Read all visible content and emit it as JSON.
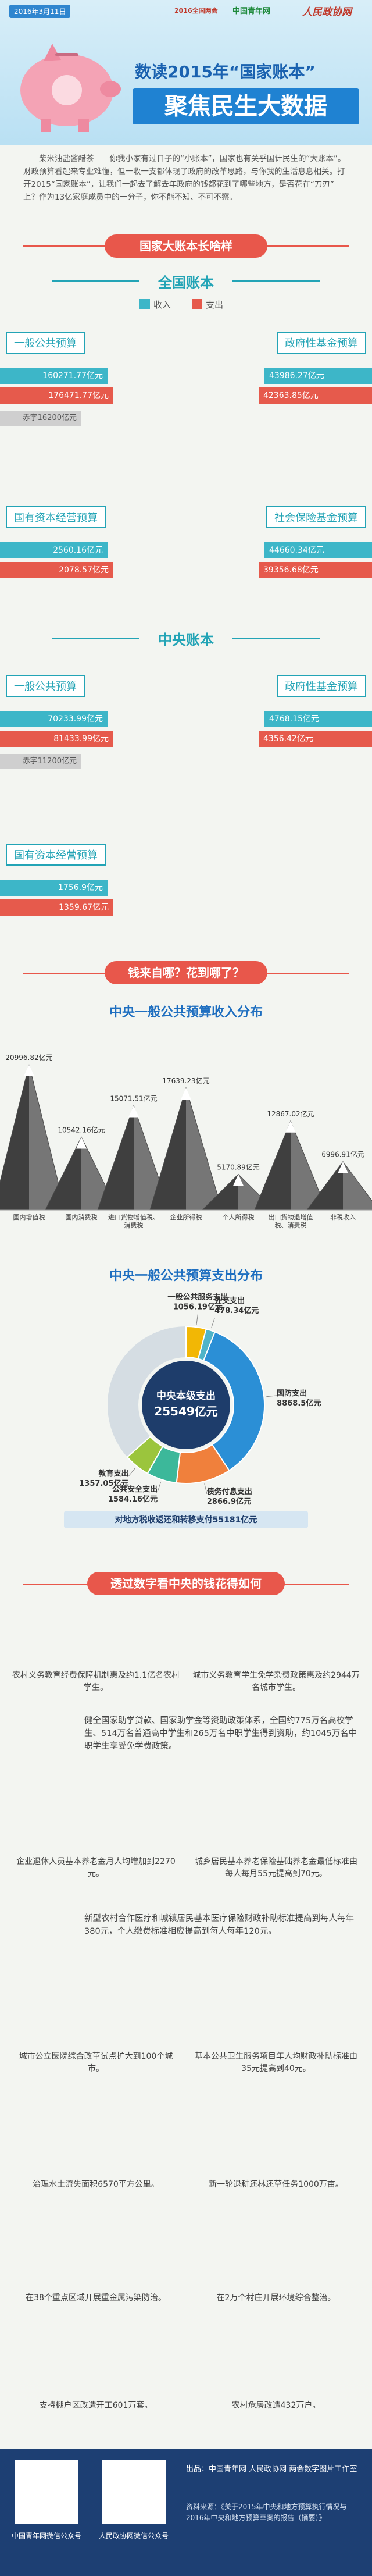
{
  "header": {
    "date": "2016年3月11日",
    "logo1": "2016全国两会",
    "logo2": "中国青年网",
    "logo3": "人民政协网",
    "title": "数读2015年“国家账本”",
    "subtitle": "聚焦民生大数据"
  },
  "intro": "柴米油盐酱醋茶——你我小家有过日子的“小账本”，国家也有关乎国计民生的“大账本”。财政预算看起来专业难懂，但一收一支都体现了政府的改革思路，与你我的生活息息相关。打开2015“国家账本”，让我们一起去了解去年政府的钱都花到了哪些地方，是否花在“刀刃”上？作为13亿家庭成员中的一分子，你不能不知、不可不察。",
  "accounts": {
    "title": "国家大账本长啥样",
    "legend": {
      "income": "收入",
      "expense": "支出"
    },
    "national": {
      "title": "全国账本",
      "items": [
        {
          "name": "一般公共预算",
          "income": "160271.77亿元",
          "expense": "176471.77亿元",
          "deficit": "赤字16200亿元"
        },
        {
          "name": "政府性基金预算",
          "income": "43986.27亿元",
          "expense": "42363.85亿元"
        },
        {
          "name": "国有资本经营预算",
          "income": "2560.16亿元",
          "expense": "2078.57亿元"
        },
        {
          "name": "社会保险基金预算",
          "income": "44660.34亿元",
          "expense": "39356.68亿元"
        }
      ]
    },
    "central": {
      "title": "中央账本",
      "items": [
        {
          "name": "一般公共预算",
          "income": "70233.99亿元",
          "expense": "81433.99亿元",
          "deficit": "赤字11200亿元"
        },
        {
          "name": "政府性基金预算",
          "income": "4768.15亿元",
          "expense": "4356.42亿元"
        },
        {
          "name": "国有资本经营预算",
          "income": "1756.9亿元",
          "expense": "1359.67亿元"
        }
      ]
    }
  },
  "flow_title": "钱来自哪？花到哪了？",
  "chart_data": [
    {
      "type": "bar",
      "title": "中央一般公共预算收入分布",
      "categories": [
        "国内增值税",
        "国内消费税",
        "进口货物增值税、消费税",
        "企业所得税",
        "个人所得税",
        "出口货物退增值税、消费税",
        "非税收入"
      ],
      "values": [
        20996.82,
        10542.16,
        15071.51,
        17639.23,
        5170.89,
        12867.02,
        6996.91
      ],
      "value_labels": [
        "20996.82亿元",
        "10542.16亿元",
        "15071.51亿元",
        "17639.23亿元",
        "5170.89亿元",
        "12867.02亿元",
        "6996.91亿元"
      ],
      "color": "#4b4b4b"
    },
    {
      "type": "pie",
      "title": "中央一般公共预算支出分布",
      "center_label": "中央本级支出",
      "total": 25549,
      "total_label": "25549亿元",
      "categories": [
        "一般公共服务支出",
        "外交支出",
        "国防支出",
        "债务付息支出",
        "公共安全支出",
        "教育支出"
      ],
      "values": [
        1056.19,
        478.34,
        8868.5,
        2866.9,
        1584.16,
        1357.05
      ],
      "value_labels": [
        "1056.19亿元",
        "478.34亿元",
        "8868.5亿元",
        "2866.9亿元",
        "1584.16亿元",
        "1357.05亿元"
      ],
      "colors": [
        "#f2b705",
        "#4fb4c8",
        "#2b8fd6",
        "#f0803c",
        "#3cb89a",
        "#9bc53d"
      ],
      "note": "对地方税收返还和转移支付55181亿元"
    }
  ],
  "livelihood": {
    "title": "透过数字看中央的钱花得如何",
    "items": [
      "农村义务教育经费保障机制惠及约1.1亿名农村学生。",
      "城市义务教育学生免学杂费政策惠及约2944万名城市学生。",
      "健全国家助学贷款、国家助学金等资助政策体系，全国约775万名高校学生、514万名普通高中学生和265万名中职学生得到资助，约1045万名中职学生享受免学费政策。",
      "企业退休人员基本养老金月人均增加到2270元。",
      "城乡居民基本养老保险基础养老金最低标准由每人每月55元提高到70元。",
      "新型农村合作医疗和城镇居民基本医疗保险财政补助标准提高到每人每年380元，个人缴费标准相应提高到每人每年120元。",
      "城市公立医院综合改革试点扩大到100个城市。",
      "基本公共卫生服务项目年人均财政补助标准由35元提高到40元。",
      "治理水土流失面积6570平方公里。",
      "新一轮退耕还林还草任务1000万亩。",
      "在38个重点区域开展重金属污染防治。",
      "在2万个村庄开展环境综合整治。",
      "支持棚户区改造开工601万套。",
      "农村危房改造432万户。"
    ]
  },
  "footer": {
    "qr1": "中国青年网微信公众号",
    "qr2": "人民政协网微信公众号",
    "producer": "出品：中国青年网  人民政协网  两会数字图片工作室",
    "source": "资料来源：《关于2015年中央和地方预算执行情况与2016年中央和地方预算草案的报告（摘要）》"
  }
}
